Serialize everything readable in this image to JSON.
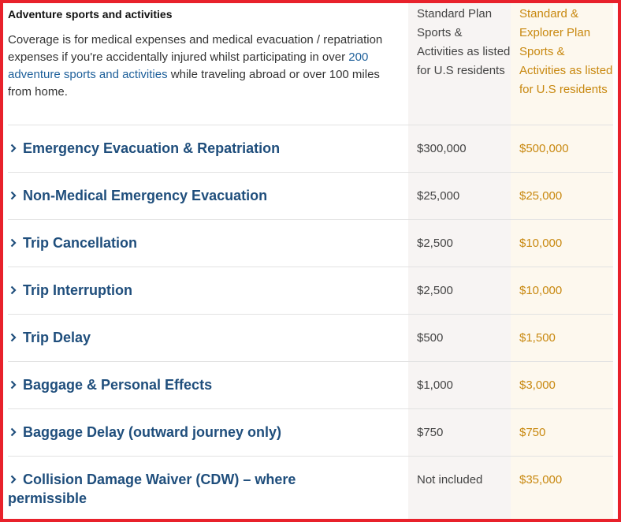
{
  "header": {
    "title": "Adventure sports and activities",
    "description": {
      "before": "Coverage is for medical expenses and medical evacuation / repatriation expenses if you're accidentally injured whilst participating in over ",
      "link": "200 adventure sports and activities",
      "after": " while traveling abroad or over 100 miles from home."
    },
    "columns": [
      "Standard Plan Sports & Activities as listed for U.S residents",
      "Standard & Explorer Plan Sports & Activities as listed for U.S residents"
    ]
  },
  "table": {
    "rows": [
      [
        "Emergency Evacuation & Repatriation",
        "$300,000",
        "$500,000"
      ],
      [
        "Non-Medical Emergency Evacuation",
        "$25,000",
        "$25,000"
      ],
      [
        "Trip Cancellation",
        "$2,500",
        "$10,000"
      ],
      [
        "Trip Interruption",
        "$2,500",
        "$10,000"
      ],
      [
        "Trip Delay",
        "$500",
        "$1,500"
      ],
      [
        "Baggage & Personal Effects",
        "$1,000",
        "$3,000"
      ],
      [
        "Baggage Delay (outward journey only)",
        "$750",
        "$750"
      ],
      [
        "Collision Damage Waiver (CDW) – where permissible",
        "Not included",
        "$35,000"
      ]
    ]
  }
}
